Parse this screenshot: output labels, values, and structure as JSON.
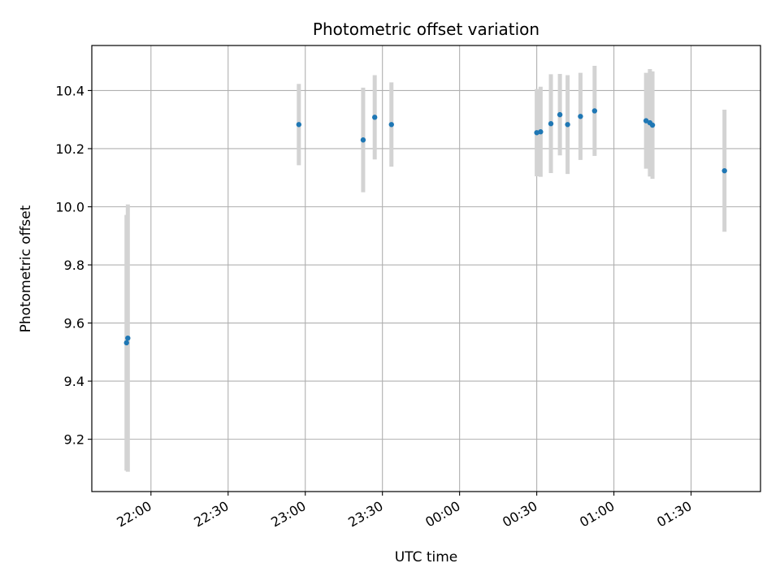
{
  "chart_data": {
    "type": "scatter",
    "title": "Photometric offset variation",
    "xlabel": "UTC time",
    "ylabel": "Photometric offset",
    "x_is_time": true,
    "x_ticks": [
      "22:00",
      "22:30",
      "23:00",
      "23:30",
      "00:00",
      "00:30",
      "01:00",
      "01:30"
    ],
    "xlim": [
      "21:37",
      "01:57"
    ],
    "y_ticks": [
      9.2,
      9.4,
      9.6,
      9.8,
      10.0,
      10.2,
      10.4
    ],
    "ylim": [
      9.02,
      10.555
    ],
    "grid": true,
    "colors": {
      "point": "#1f77b4",
      "errorbar": "#d3d3d3",
      "grid": "#b0b0b0"
    },
    "points": [
      {
        "x": "21:50:30",
        "y": 9.532,
        "yerr_low": 0.44,
        "yerr_high": 0.44
      },
      {
        "x": "21:51:00",
        "y": 9.548,
        "yerr_low": 0.46,
        "yerr_high": 0.46
      },
      {
        "x": "22:57:30",
        "y": 10.283,
        "yerr_low": 0.14,
        "yerr_high": 0.14
      },
      {
        "x": "23:22:30",
        "y": 10.23,
        "yerr_low": 0.18,
        "yerr_high": 0.18
      },
      {
        "x": "23:27:00",
        "y": 10.308,
        "yerr_low": 0.145,
        "yerr_high": 0.145
      },
      {
        "x": "23:33:30",
        "y": 10.283,
        "yerr_low": 0.145,
        "yerr_high": 0.145
      },
      {
        "x": "00:30:00",
        "y": 10.255,
        "yerr_low": 0.15,
        "yerr_high": 0.15
      },
      {
        "x": "00:31:30",
        "y": 10.258,
        "yerr_low": 0.155,
        "yerr_high": 0.155
      },
      {
        "x": "00:35:30",
        "y": 10.286,
        "yerr_low": 0.17,
        "yerr_high": 0.17
      },
      {
        "x": "00:39:00",
        "y": 10.317,
        "yerr_low": 0.14,
        "yerr_high": 0.14
      },
      {
        "x": "00:42:00",
        "y": 10.283,
        "yerr_low": 0.17,
        "yerr_high": 0.17
      },
      {
        "x": "00:47:00",
        "y": 10.311,
        "yerr_low": 0.15,
        "yerr_high": 0.15
      },
      {
        "x": "00:52:30",
        "y": 10.33,
        "yerr_low": 0.155,
        "yerr_high": 0.155
      },
      {
        "x": "01:12:30",
        "y": 10.296,
        "yerr_low": 0.165,
        "yerr_high": 0.165
      },
      {
        "x": "01:14:00",
        "y": 10.289,
        "yerr_low": 0.185,
        "yerr_high": 0.185
      },
      {
        "x": "01:15:00",
        "y": 10.281,
        "yerr_low": 0.185,
        "yerr_high": 0.185
      },
      {
        "x": "01:43:00",
        "y": 10.124,
        "yerr_low": 0.21,
        "yerr_high": 0.21
      }
    ]
  }
}
